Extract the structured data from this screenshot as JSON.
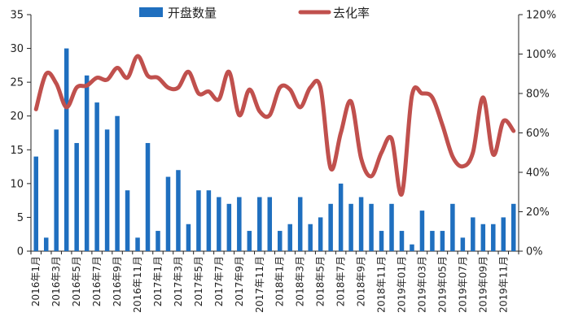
{
  "chart_data": {
    "type": "bar+line",
    "x": [
      "2016年1月",
      "2016年2月",
      "2016年3月",
      "2016年4月",
      "2016年5月",
      "2016年6月",
      "2016年7月",
      "2016年8月",
      "2016年9月",
      "2016年10月",
      "2016年11月",
      "2016年12月",
      "2017年1月",
      "2017年2月",
      "2017年3月",
      "2017年4月",
      "2017年5月",
      "2017年6月",
      "2017年7月",
      "2017年8月",
      "2017年9月",
      "2017年10月",
      "2017年11月",
      "2017年12月",
      "2018年1月",
      "2018年2月",
      "2018年3月",
      "2018年4月",
      "2018年5月",
      "2018年6月",
      "2018年7月",
      "2018年8月",
      "2018年9月",
      "2018年10月",
      "2018年11月",
      "2018年12月",
      "2019年01月",
      "2019年02月",
      "2019年03月",
      "2019年04月",
      "2019年05月",
      "2019年06月",
      "2019年07月",
      "2019年08月",
      "2019年09月",
      "2019年10月",
      "2019年11月",
      "2019年12月"
    ],
    "x_tick_labels": [
      "2016年1月",
      "2016年3月",
      "2016年5月",
      "2016年7月",
      "2016年9月",
      "2016年11月",
      "2017年1月",
      "2017年3月",
      "2017年5月",
      "2017年7月",
      "2017年9月",
      "2017年11月",
      "2018年1月",
      "2018年3月",
      "2018年5月",
      "2018年7月",
      "2018年9月",
      "2018年11月",
      "2019年01月",
      "2019年03月",
      "2019年05月",
      "2019年07月",
      "2019年09月",
      "2019年11月"
    ],
    "series": [
      {
        "name": "开盘数量",
        "kind": "bar",
        "axis": "left",
        "color": "#1f6fbf",
        "values": [
          14,
          2,
          18,
          30,
          16,
          26,
          22,
          18,
          20,
          9,
          2,
          16,
          3,
          11,
          12,
          4,
          9,
          9,
          8,
          7,
          8,
          3,
          8,
          8,
          3,
          4,
          8,
          4,
          5,
          7,
          10,
          7,
          8,
          7,
          3,
          7,
          3,
          1,
          6,
          3,
          3,
          7,
          2,
          5,
          4,
          4,
          5,
          7
        ]
      },
      {
        "name": "去化率",
        "kind": "line",
        "axis": "right",
        "unit": "%",
        "color": "#c0504d",
        "values": [
          72,
          90,
          85,
          73,
          83,
          84,
          88,
          87,
          93,
          88,
          99,
          89,
          88,
          83,
          83,
          91,
          80,
          81,
          77,
          91,
          69,
          82,
          71,
          69,
          83,
          82,
          73,
          83,
          83,
          42,
          60,
          76,
          47,
          38,
          50,
          57,
          29,
          79,
          80,
          78,
          64,
          48,
          43,
          50,
          78,
          49,
          66,
          61
        ]
      }
    ],
    "y_left": {
      "min": 0,
      "max": 35,
      "ticks": [
        0,
        5,
        10,
        15,
        20,
        25,
        30,
        35
      ]
    },
    "y_right": {
      "min": 0,
      "max": 120,
      "ticks": [
        "0%",
        "20%",
        "40%",
        "60%",
        "80%",
        "100%",
        "120%"
      ]
    },
    "grid": false,
    "legend_position": "top"
  }
}
